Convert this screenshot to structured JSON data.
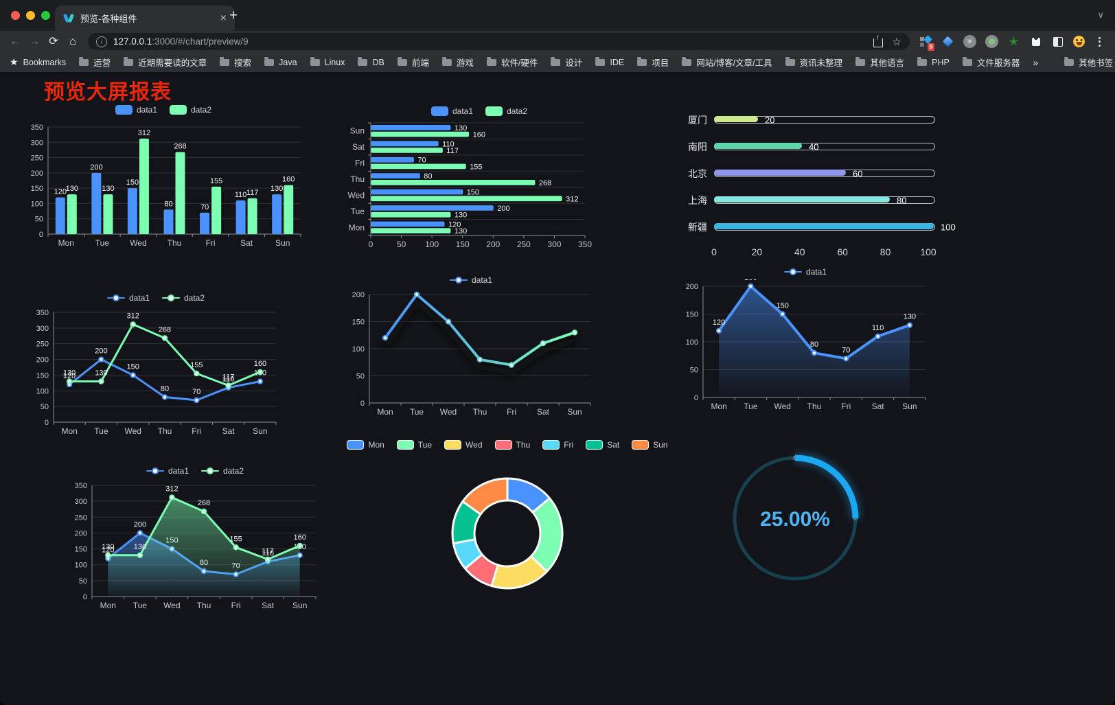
{
  "browser": {
    "tab_title": "预览-各种组件",
    "url_host": "127.0.0.1",
    "url_rest": ":3000/#/chart/preview/9",
    "icons": {
      "back": "←",
      "forward": "→",
      "reload": "⟳",
      "home": "⌂",
      "info": "i",
      "share": "↑",
      "star": "☆",
      "close": "×",
      "new_tab": "+",
      "chevron": "∨",
      "bookmarks_star": "★",
      "cmd": "✳",
      "star_solid": "✭"
    },
    "bookmarks_label": "Bookmarks",
    "bookmarks": [
      "运营",
      "近期需要读的文章",
      "搜索",
      "Java",
      "Linux",
      "DB",
      "前端",
      "游戏",
      "软件/硬件",
      "设计",
      "IDE",
      "项目",
      "网站/博客/文章/工具",
      "资讯未整理",
      "其他语言",
      "PHP",
      "文件服务器"
    ],
    "overflow_glyph": "»",
    "other_bookmarks": "其他书签",
    "extension_badge": "9"
  },
  "page": {
    "title": "预览大屏报表"
  },
  "chart_data": [
    {
      "id": "grouped-bar",
      "type": "bar",
      "categories": [
        "Mon",
        "Tue",
        "Wed",
        "Thu",
        "Fri",
        "Sat",
        "Sun"
      ],
      "series": [
        {
          "name": "data1",
          "color": "#4992ff",
          "values": [
            120,
            200,
            150,
            80,
            70,
            110,
            130
          ]
        },
        {
          "name": "data2",
          "color": "#7cffb2",
          "values": [
            130,
            130,
            312,
            268,
            155,
            117,
            160
          ]
        }
      ],
      "ylim": [
        0,
        350
      ],
      "yticks": [
        0,
        50,
        100,
        150,
        200,
        250,
        300,
        350
      ],
      "value_labels": true,
      "legend_position": "top",
      "grid": true
    },
    {
      "id": "horizontal-bar",
      "type": "hbar",
      "categories": [
        "Mon",
        "Tue",
        "Wed",
        "Thu",
        "Fri",
        "Sat",
        "Sun"
      ],
      "series": [
        {
          "name": "data1",
          "color": "#4992ff",
          "values": [
            120,
            200,
            150,
            80,
            70,
            110,
            130
          ]
        },
        {
          "name": "data2",
          "color": "#7cffb2",
          "values": [
            130,
            130,
            312,
            268,
            155,
            117,
            160
          ]
        }
      ],
      "xlim": [
        0,
        350
      ],
      "xticks": [
        0,
        50,
        100,
        150,
        200,
        250,
        300,
        350
      ],
      "value_labels": true,
      "legend_position": "top",
      "category_order": "Mon-at-bottom"
    },
    {
      "id": "city-progress",
      "type": "progress",
      "categories": [
        "厦门",
        "南阳",
        "北京",
        "上海",
        "新疆"
      ],
      "values": [
        20,
        40,
        60,
        80,
        100
      ],
      "colors": [
        "#cdea8f",
        "#5fd5ab",
        "#8f97ea",
        "#85e5df",
        "#3ab5e2"
      ],
      "xlim": [
        0,
        100
      ],
      "xticks": [
        0,
        20,
        40,
        60,
        80,
        100
      ]
    },
    {
      "id": "two-series-line",
      "type": "line",
      "categories": [
        "Mon",
        "Tue",
        "Wed",
        "Thu",
        "Fri",
        "Sat",
        "Sun"
      ],
      "series": [
        {
          "name": "data1",
          "color": "#4992ff",
          "values": [
            120,
            200,
            150,
            80,
            70,
            110,
            130
          ]
        },
        {
          "name": "data2",
          "color": "#7cffb2",
          "values": [
            130,
            130,
            312,
            268,
            155,
            117,
            160
          ]
        }
      ],
      "ylim": [
        0,
        350
      ],
      "yticks": [
        0,
        50,
        100,
        150,
        200,
        250,
        300,
        350
      ],
      "value_labels": true,
      "legend_position": "top"
    },
    {
      "id": "gradient-line",
      "type": "line",
      "categories": [
        "Mon",
        "Tue",
        "Wed",
        "Thu",
        "Fri",
        "Sat",
        "Sun"
      ],
      "series": [
        {
          "name": "data1",
          "color": "#4992ff",
          "gradient": [
            "#4992ff",
            "#7cffb2"
          ],
          "values": [
            120,
            200,
            150,
            80,
            70,
            110,
            130
          ]
        }
      ],
      "ylim": [
        0,
        200
      ],
      "yticks": [
        0,
        50,
        100,
        150,
        200
      ],
      "value_labels": false,
      "shadow": true,
      "legend_position": "top"
    },
    {
      "id": "blue-area-line",
      "type": "area",
      "categories": [
        "Mon",
        "Tue",
        "Wed",
        "Thu",
        "Fri",
        "Sat",
        "Sun"
      ],
      "series": [
        {
          "name": "data1",
          "color": "#4992ff",
          "values": [
            120,
            200,
            150,
            80,
            70,
            110,
            130
          ]
        }
      ],
      "ylim": [
        0,
        200
      ],
      "yticks": [
        0,
        50,
        100,
        150,
        200
      ],
      "value_labels": true,
      "legend_position": "top"
    },
    {
      "id": "two-series-area",
      "type": "area",
      "categories": [
        "Mon",
        "Tue",
        "Wed",
        "Thu",
        "Fri",
        "Sat",
        "Sun"
      ],
      "series": [
        {
          "name": "data1",
          "color": "#4992ff",
          "values": [
            120,
            200,
            150,
            80,
            70,
            110,
            130
          ]
        },
        {
          "name": "data2",
          "color": "#7cffb2",
          "values": [
            130,
            130,
            312,
            268,
            155,
            117,
            160
          ]
        }
      ],
      "ylim": [
        0,
        350
      ],
      "yticks": [
        0,
        50,
        100,
        150,
        200,
        250,
        300,
        350
      ],
      "value_labels": true,
      "legend_position": "top"
    },
    {
      "id": "donut",
      "type": "pie",
      "categories": [
        "Mon",
        "Tue",
        "Wed",
        "Thu",
        "Fri",
        "Sat",
        "Sun"
      ],
      "values": [
        120,
        200,
        150,
        80,
        70,
        110,
        130
      ],
      "colors": [
        "#4992ff",
        "#7cffb2",
        "#fddd60",
        "#ff6e76",
        "#58d9f9",
        "#05c091",
        "#ff8a45"
      ],
      "inner_radius": 48,
      "outer_radius": 80,
      "legend_position": "top"
    },
    {
      "id": "gauge",
      "type": "gauge",
      "label": "25.00%",
      "percent": 25,
      "color": "#1aa8f2",
      "track_color": "#17414f",
      "text_color": "#4db5f5"
    }
  ]
}
